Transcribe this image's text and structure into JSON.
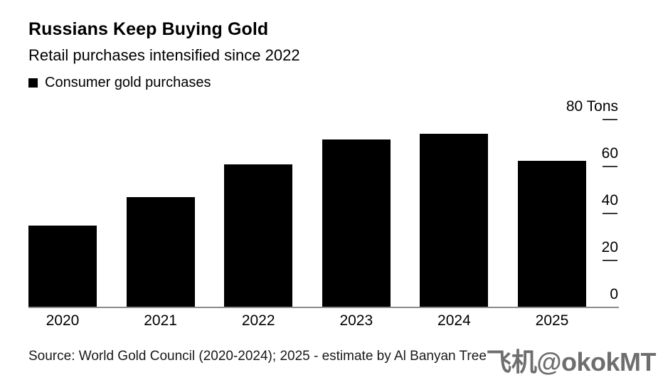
{
  "chart_data": {
    "type": "bar",
    "title": "Russians Keep Buying Gold",
    "subtitle": "Retail purchases intensified since 2022",
    "legend_label": "Consumer gold purchases",
    "categories": [
      "2020",
      "2021",
      "2022",
      "2023",
      "2024",
      "2025"
    ],
    "values": [
      35,
      47,
      61,
      71.5,
      74,
      62.5
    ],
    "unit": "Tons",
    "ylim": [
      0,
      80
    ],
    "yticks": [
      {
        "value": 0,
        "label": "0",
        "tick_line": false
      },
      {
        "value": 20,
        "label": "20",
        "tick_line": true
      },
      {
        "value": 40,
        "label": "40",
        "tick_line": true
      },
      {
        "value": 60,
        "label": "60",
        "tick_line": true
      },
      {
        "value": 80,
        "label": "80 Tons",
        "tick_line": true
      }
    ],
    "axis_side": "right",
    "legend_position": "top-left",
    "grid": false,
    "bar_color": "#000000"
  },
  "footer": {
    "source": "Source: World Gold Council (2020-2024); 2025 - estimate by Al Banyan Tree",
    "watermark": "飞机@okokMT"
  },
  "colors": {
    "background": "#ffffff",
    "bar": "#000000",
    "axis_line": "#8c8c8c",
    "tick_line": "#3a3a3a",
    "text": "#000000",
    "source_text": "#191919",
    "watermark": "#6e6e6e"
  }
}
